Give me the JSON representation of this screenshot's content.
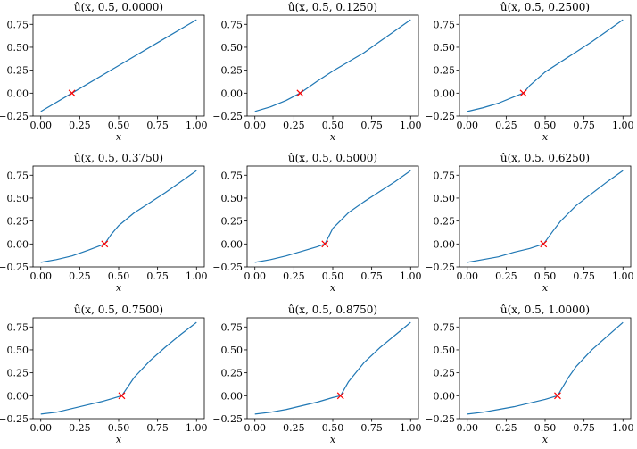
{
  "chart_data": [
    {
      "type": "line",
      "title": "û(x, 0.5, 0.0000)",
      "xlabel": "x",
      "xlim": [
        -0.05,
        1.05
      ],
      "ylim": [
        -0.25,
        0.85
      ],
      "xticks": [
        "0.00",
        "0.25",
        "0.50",
        "0.75",
        "1.00"
      ],
      "yticks": [
        "−0.25",
        "0.00",
        "0.25",
        "0.50",
        "0.75"
      ],
      "series": [
        {
          "x": [
            0.0,
            0.25,
            0.5,
            0.75,
            1.0
          ],
          "y": [
            -0.2,
            0.05,
            0.3,
            0.55,
            0.8
          ],
          "color": "#1f77b4"
        }
      ],
      "marker": {
        "x": 0.2,
        "y": 0.0,
        "symbol": "x",
        "color": "#ff0000"
      }
    },
    {
      "type": "line",
      "title": "û(x, 0.5, 0.1250)",
      "xlabel": "x",
      "xlim": [
        -0.05,
        1.05
      ],
      "ylim": [
        -0.25,
        0.85
      ],
      "xticks": [
        "0.00",
        "0.25",
        "0.50",
        "0.75",
        "1.00"
      ],
      "yticks": [
        "−0.25",
        "0.00",
        "0.25",
        "0.50",
        "0.75"
      ],
      "series": [
        {
          "x": [
            0.0,
            0.1,
            0.2,
            0.29,
            0.4,
            0.5,
            0.6,
            0.7,
            0.8,
            0.9,
            1.0
          ],
          "y": [
            -0.2,
            -0.15,
            -0.08,
            0.0,
            0.13,
            0.24,
            0.34,
            0.44,
            0.56,
            0.68,
            0.8
          ],
          "color": "#1f77b4"
        }
      ],
      "marker": {
        "x": 0.29,
        "y": 0.0,
        "symbol": "x",
        "color": "#ff0000"
      }
    },
    {
      "type": "line",
      "title": "û(x, 0.5, 0.2500)",
      "xlabel": "x",
      "xlim": [
        -0.05,
        1.05
      ],
      "ylim": [
        -0.25,
        0.85
      ],
      "xticks": [
        "0.00",
        "0.25",
        "0.50",
        "0.75",
        "1.00"
      ],
      "yticks": [
        "−0.25",
        "0.00",
        "0.25",
        "0.50",
        "0.75"
      ],
      "series": [
        {
          "x": [
            0.0,
            0.1,
            0.2,
            0.3,
            0.36,
            0.4,
            0.5,
            0.6,
            0.7,
            0.8,
            0.9,
            1.0
          ],
          "y": [
            -0.2,
            -0.16,
            -0.11,
            -0.04,
            0.0,
            0.08,
            0.23,
            0.34,
            0.45,
            0.56,
            0.68,
            0.8
          ],
          "color": "#1f77b4"
        }
      ],
      "marker": {
        "x": 0.36,
        "y": 0.0,
        "symbol": "x",
        "color": "#ff0000"
      }
    },
    {
      "type": "line",
      "title": "û(x, 0.5, 0.3750)",
      "xlabel": "x",
      "xlim": [
        -0.05,
        1.05
      ],
      "ylim": [
        -0.25,
        0.85
      ],
      "xticks": [
        "0.00",
        "0.25",
        "0.50",
        "0.75",
        "1.00"
      ],
      "yticks": [
        "−0.25",
        "0.00",
        "0.25",
        "0.50",
        "0.75"
      ],
      "series": [
        {
          "x": [
            0.0,
            0.1,
            0.2,
            0.3,
            0.41,
            0.45,
            0.5,
            0.6,
            0.7,
            0.8,
            0.9,
            1.0
          ],
          "y": [
            -0.2,
            -0.17,
            -0.13,
            -0.07,
            0.0,
            0.1,
            0.2,
            0.34,
            0.45,
            0.56,
            0.68,
            0.8
          ],
          "color": "#1f77b4"
        }
      ],
      "marker": {
        "x": 0.41,
        "y": 0.0,
        "symbol": "x",
        "color": "#ff0000"
      }
    },
    {
      "type": "line",
      "title": "û(x, 0.5, 0.5000)",
      "xlabel": "x",
      "xlim": [
        -0.05,
        1.05
      ],
      "ylim": [
        -0.25,
        0.85
      ],
      "xticks": [
        "0.00",
        "0.25",
        "0.50",
        "0.75",
        "1.00"
      ],
      "yticks": [
        "−0.25",
        "0.00",
        "0.25",
        "0.50",
        "0.75"
      ],
      "series": [
        {
          "x": [
            0.0,
            0.1,
            0.2,
            0.3,
            0.4,
            0.45,
            0.5,
            0.6,
            0.7,
            0.8,
            0.9,
            1.0
          ],
          "y": [
            -0.2,
            -0.17,
            -0.13,
            -0.08,
            -0.03,
            0.0,
            0.17,
            0.34,
            0.46,
            0.57,
            0.68,
            0.8
          ],
          "color": "#1f77b4"
        }
      ],
      "marker": {
        "x": 0.45,
        "y": 0.0,
        "symbol": "x",
        "color": "#ff0000"
      }
    },
    {
      "type": "line",
      "title": "û(x, 0.5, 0.6250)",
      "xlabel": "x",
      "xlim": [
        -0.05,
        1.05
      ],
      "ylim": [
        -0.25,
        0.85
      ],
      "xticks": [
        "0.00",
        "0.25",
        "0.50",
        "0.75",
        "1.00"
      ],
      "yticks": [
        "−0.25",
        "0.00",
        "0.25",
        "0.50",
        "0.75"
      ],
      "series": [
        {
          "x": [
            0.0,
            0.1,
            0.2,
            0.3,
            0.4,
            0.49,
            0.55,
            0.6,
            0.7,
            0.8,
            0.9,
            1.0
          ],
          "y": [
            -0.2,
            -0.17,
            -0.14,
            -0.09,
            -0.05,
            0.0,
            0.14,
            0.25,
            0.42,
            0.55,
            0.68,
            0.8
          ],
          "color": "#1f77b4"
        }
      ],
      "marker": {
        "x": 0.49,
        "y": 0.0,
        "symbol": "x",
        "color": "#ff0000"
      }
    },
    {
      "type": "line",
      "title": "û(x, 0.5, 0.7500)",
      "xlabel": "x",
      "xlim": [
        -0.05,
        1.05
      ],
      "ylim": [
        -0.25,
        0.85
      ],
      "xticks": [
        "0.00",
        "0.25",
        "0.50",
        "0.75",
        "1.00"
      ],
      "yticks": [
        "−0.25",
        "0.00",
        "0.25",
        "0.50",
        "0.75"
      ],
      "series": [
        {
          "x": [
            0.0,
            0.1,
            0.2,
            0.3,
            0.4,
            0.52,
            0.6,
            0.7,
            0.8,
            0.9,
            1.0
          ],
          "y": [
            -0.2,
            -0.18,
            -0.14,
            -0.1,
            -0.06,
            0.0,
            0.2,
            0.38,
            0.53,
            0.67,
            0.8
          ],
          "color": "#1f77b4"
        }
      ],
      "marker": {
        "x": 0.52,
        "y": 0.0,
        "symbol": "x",
        "color": "#ff0000"
      }
    },
    {
      "type": "line",
      "title": "û(x, 0.5, 0.8750)",
      "xlabel": "x",
      "xlim": [
        -0.05,
        1.05
      ],
      "ylim": [
        -0.25,
        0.85
      ],
      "xticks": [
        "0.00",
        "0.25",
        "0.50",
        "0.75",
        "1.00"
      ],
      "yticks": [
        "−0.25",
        "0.00",
        "0.25",
        "0.50",
        "0.75"
      ],
      "series": [
        {
          "x": [
            0.0,
            0.1,
            0.2,
            0.3,
            0.4,
            0.5,
            0.55,
            0.6,
            0.7,
            0.8,
            0.9,
            1.0
          ],
          "y": [
            -0.2,
            -0.18,
            -0.15,
            -0.11,
            -0.07,
            -0.02,
            0.0,
            0.15,
            0.36,
            0.52,
            0.66,
            0.8
          ],
          "color": "#1f77b4"
        }
      ],
      "marker": {
        "x": 0.55,
        "y": 0.0,
        "symbol": "x",
        "color": "#ff0000"
      }
    },
    {
      "type": "line",
      "title": "û(x, 0.5, 1.0000)",
      "xlabel": "x",
      "xlim": [
        -0.05,
        1.05
      ],
      "ylim": [
        -0.25,
        0.85
      ],
      "xticks": [
        "0.00",
        "0.25",
        "0.50",
        "0.75",
        "1.00"
      ],
      "yticks": [
        "−0.25",
        "0.00",
        "0.25",
        "0.50",
        "0.75"
      ],
      "series": [
        {
          "x": [
            0.0,
            0.1,
            0.2,
            0.3,
            0.4,
            0.5,
            0.58,
            0.65,
            0.7,
            0.8,
            0.9,
            1.0
          ],
          "y": [
            -0.2,
            -0.18,
            -0.15,
            -0.12,
            -0.08,
            -0.04,
            0.0,
            0.2,
            0.32,
            0.5,
            0.65,
            0.8
          ],
          "color": "#1f77b4"
        }
      ],
      "marker": {
        "x": 0.58,
        "y": 0.0,
        "symbol": "x",
        "color": "#ff0000"
      }
    }
  ]
}
